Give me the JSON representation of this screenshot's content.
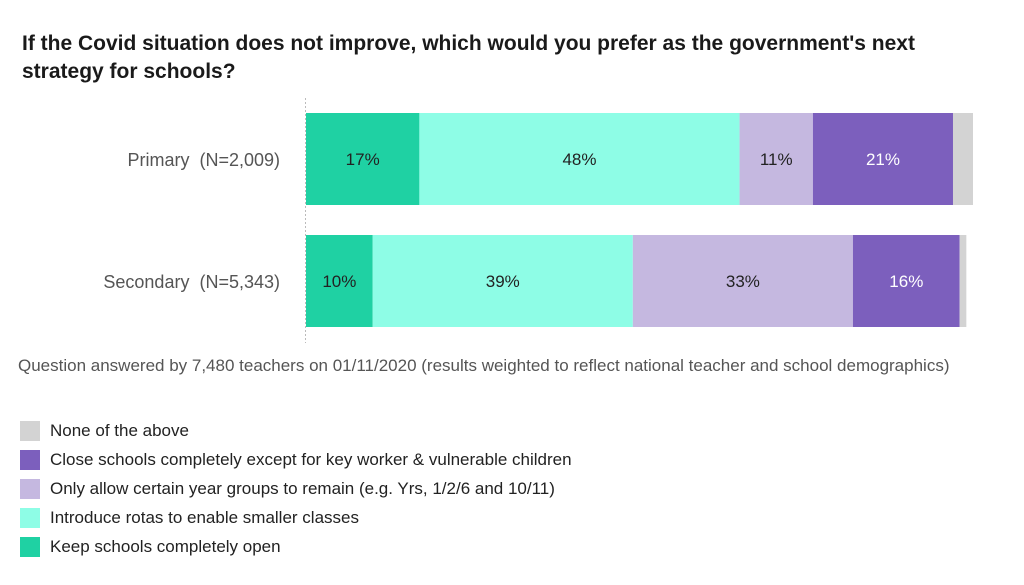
{
  "chart_data": {
    "type": "bar",
    "orientation": "horizontal",
    "stacked": true,
    "title": "If the Covid situation does not improve, which would you prefer as the government's next strategy for schools?",
    "categories": [
      "Primary  (N=2,009)",
      "Secondary  (N=5,343)"
    ],
    "series": [
      {
        "name": "Keep schools completely open",
        "color": "#1fd1a3",
        "values": [
          17,
          10
        ],
        "labels": [
          "17%",
          "10%"
        ]
      },
      {
        "name": "Introduce rotas to enable smaller classes",
        "color": "#8efde6",
        "values": [
          48,
          39
        ],
        "labels": [
          "48%",
          "39%"
        ]
      },
      {
        "name": "Only allow certain year groups to remain (e.g. Yrs, 1/2/6 and 10/11)",
        "color": "#c5b8e0",
        "values": [
          11,
          33
        ],
        "labels": [
          "11%",
          "33%"
        ]
      },
      {
        "name": "Close schools completely except for key worker & vulnerable children",
        "color": "#7c5fbd",
        "values": [
          21,
          16
        ],
        "labels": [
          "21%",
          "16%"
        ]
      },
      {
        "name": "None of the above",
        "color": "#d3d3d3",
        "values": [
          3,
          1
        ],
        "labels": [
          "",
          ""
        ]
      }
    ],
    "xlim": [
      0,
      100
    ],
    "grid": false,
    "legend_position": "bottom-left",
    "legend_order": [
      "None of the above",
      "Close schools completely except for key worker & vulnerable children",
      "Only allow certain year groups to remain (e.g. Yrs, 1/2/6 and 10/11)",
      "Introduce rotas to enable smaller classes",
      "Keep schools completely open"
    ],
    "note": "Question answered by 7,480 teachers on 01/11/2020 (results weighted to reflect national teacher and school demographics)"
  }
}
